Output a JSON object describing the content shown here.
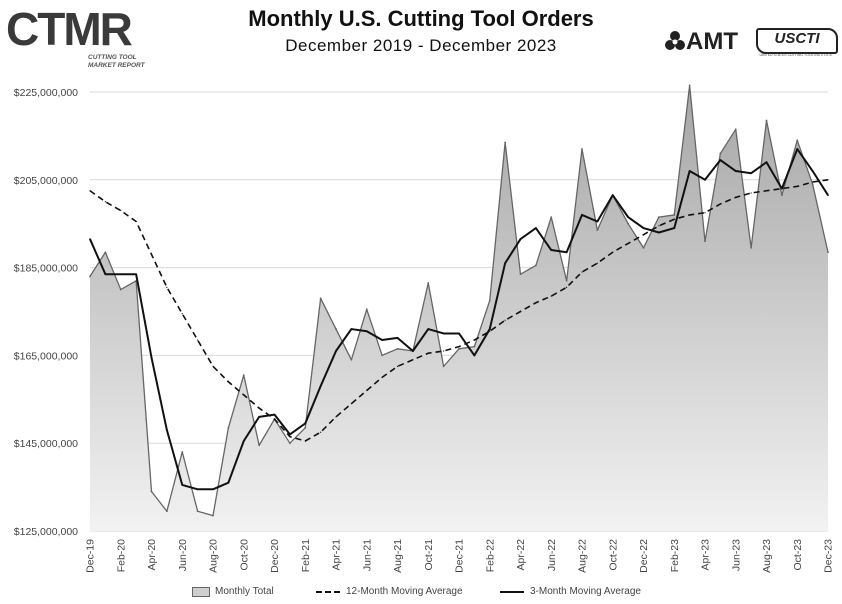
{
  "header": {
    "logo_left_text": "CTMR",
    "logo_left_subtext": "CUTTING TOOL MARKET REPORT",
    "title": "Monthly U.S. Cutting Tool Orders",
    "subtitle": "December 2019 - December 2023",
    "logo_amt_text": "AMT",
    "logo_usc_text": "USCTI",
    "logo_usc_subtext": "UNITED STATES CUTTING TOOL INSTITUTE"
  },
  "legend": {
    "monthly_total": "Monthly Total",
    "ma12": "12-Month Moving Average",
    "ma3": "3-Month Moving Average"
  },
  "colors": {
    "area_fill_top": "#a6a6a6",
    "area_fill_bottom": "#f2f2f2",
    "monthly_line": "#666666",
    "ma_line": "#111111",
    "grid": "#d9d9d9"
  },
  "chart_data": {
    "type": "area",
    "title": "Monthly U.S. Cutting Tool Orders",
    "subtitle": "December 2019 - December 2023",
    "xlabel": "",
    "ylabel": "",
    "ylim": [
      125000000,
      225000000
    ],
    "yticks": [
      125000000,
      145000000,
      165000000,
      185000000,
      205000000,
      225000000
    ],
    "ytick_labels": [
      "$125,000,000",
      "$145,000,000",
      "$165,000,000",
      "$185,000,000",
      "$205,000,000",
      "$225,000,000"
    ],
    "grid": true,
    "legend_position": "bottom",
    "x": [
      "Dec-19",
      "Jan-20",
      "Feb-20",
      "Mar-20",
      "Apr-20",
      "May-20",
      "Jun-20",
      "Jul-20",
      "Aug-20",
      "Sep-20",
      "Oct-20",
      "Nov-20",
      "Dec-20",
      "Jan-21",
      "Feb-21",
      "Mar-21",
      "Apr-21",
      "May-21",
      "Jun-21",
      "Jul-21",
      "Aug-21",
      "Sep-21",
      "Oct-21",
      "Nov-21",
      "Dec-21",
      "Jan-22",
      "Feb-22",
      "Mar-22",
      "Apr-22",
      "May-22",
      "Jun-22",
      "Jul-22",
      "Aug-22",
      "Sep-22",
      "Oct-22",
      "Nov-22",
      "Dec-22",
      "Jan-23",
      "Feb-23",
      "Mar-23",
      "Apr-23",
      "May-23",
      "Jun-23",
      "Jul-23",
      "Aug-23",
      "Sep-23",
      "Oct-23",
      "Nov-23",
      "Dec-23"
    ],
    "x_tick_labels": [
      "Dec-19",
      "Feb-20",
      "Apr-20",
      "Jun-20",
      "Aug-20",
      "Oct-20",
      "Dec-20",
      "Feb-21",
      "Apr-21",
      "Jun-21",
      "Aug-21",
      "Oct-21",
      "Dec-21",
      "Feb-22",
      "Apr-22",
      "Jun-22",
      "Aug-22",
      "Oct-22",
      "Dec-22",
      "Feb-23",
      "Apr-23",
      "Jun-23",
      "Aug-23",
      "Oct-23",
      "Dec-23"
    ],
    "series": [
      {
        "name": "Monthly Total",
        "style": "area",
        "values": [
          183000000,
          188500000,
          180000000,
          182000000,
          134000000,
          129500000,
          143000000,
          129500000,
          128500000,
          148500000,
          160500000,
          144500000,
          150500000,
          145000000,
          148500000,
          178000000,
          171000000,
          164000000,
          175500000,
          165000000,
          166500000,
          166000000,
          181500000,
          162500000,
          166500000,
          167000000,
          177500000,
          213500000,
          183500000,
          185500000,
          196500000,
          182000000,
          212000000,
          193500000,
          201500000,
          195000000,
          189500000,
          196500000,
          197000000,
          226500000,
          191000000,
          211000000,
          216500000,
          189500000,
          218500000,
          201500000,
          214000000,
          204000000,
          188500000
        ]
      },
      {
        "name": "12-Month Moving Average",
        "style": "dashed",
        "values": [
          202500000,
          200000000,
          198000000,
          195500000,
          188000000,
          180500000,
          174500000,
          168500000,
          162500000,
          159000000,
          156000000,
          153000000,
          150500000,
          146500000,
          145500000,
          147500000,
          151000000,
          154000000,
          157000000,
          160000000,
          162500000,
          164000000,
          165500000,
          166000000,
          167000000,
          168500000,
          170500000,
          173000000,
          175000000,
          177000000,
          178500000,
          180500000,
          184000000,
          186000000,
          188500000,
          190500000,
          192500000,
          194500000,
          196000000,
          197000000,
          197500000,
          199500000,
          201000000,
          202000000,
          202500000,
          203000000,
          203500000,
          204500000,
          205000000
        ]
      },
      {
        "name": "3-Month Moving Average",
        "style": "solid",
        "values": [
          191500000,
          183500000,
          183500000,
          183500000,
          164500000,
          148000000,
          135500000,
          134500000,
          134500000,
          136000000,
          145500000,
          151000000,
          151500000,
          147000000,
          149500000,
          158000000,
          166000000,
          171000000,
          170500000,
          168500000,
          169000000,
          166000000,
          171000000,
          170000000,
          170000000,
          165000000,
          171000000,
          186000000,
          191500000,
          194000000,
          189000000,
          188500000,
          197000000,
          195500000,
          201500000,
          196500000,
          194000000,
          193000000,
          194000000,
          207000000,
          205000000,
          209500000,
          207000000,
          206500000,
          209000000,
          203000000,
          212000000,
          207000000,
          201500000
        ]
      }
    ]
  }
}
